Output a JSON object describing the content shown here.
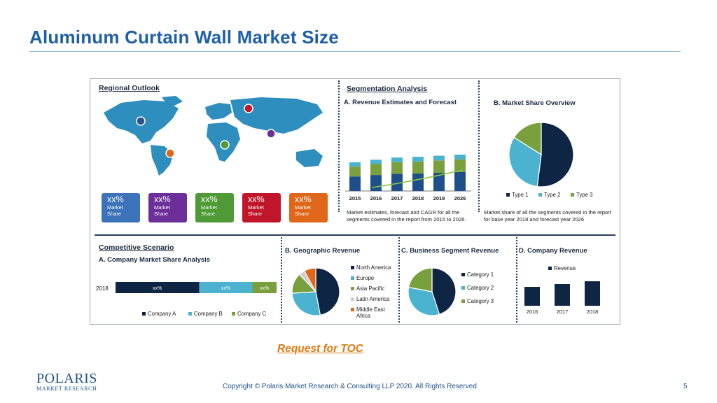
{
  "page": {
    "title": "Aluminum Curtain Wall Market  Size",
    "toc_link": "Request for TOC",
    "copyright": "Copyright © Polaris Market Research & Consulting LLP 2020. All Rights Reserved",
    "page_number": "5"
  },
  "logo": {
    "name": "POLARIS",
    "sub": "MARKET RESEARCH"
  },
  "regional": {
    "heading": "Regional Outlook",
    "boxes": [
      {
        "pct": "xx%",
        "l1": "Market",
        "l2": "Share",
        "color": "#3d73b8"
      },
      {
        "pct": "xx%",
        "l1": "Market",
        "l2": "Share",
        "color": "#6c2f9a"
      },
      {
        "pct": "xx%",
        "l1": "Market",
        "l2": "Share",
        "color": "#4f9a36"
      },
      {
        "pct": "xx%",
        "l1": "Market",
        "l2": "Share",
        "color": "#c0162b"
      },
      {
        "pct": "xx%",
        "l1": "Market",
        "l2": "Share",
        "color": "#e0661a"
      }
    ]
  },
  "segmentation": {
    "heading": "Segmentation Analysis",
    "revenue_title": "A. Revenue Estimates and Forecast",
    "revenue_caption": "Market estimates, forecast and CAGR for all the segments covered in the report from 2015 to 2026.",
    "share_title": "B. Market Share Overview",
    "share_caption": "Market share of all the segments covered in the report for base year 2018 and forecast year 2026",
    "share_legend": [
      "Type 1",
      "Type 2",
      "Type 3"
    ]
  },
  "competitive": {
    "heading": "Competitive Scenario",
    "title": "A. Company Market Share Analysis",
    "legend": [
      "Company  A",
      "Company B",
      "Company C"
    ]
  },
  "geo": {
    "title": "B. Geographic Revenue",
    "legend": [
      "North America",
      "Europe",
      "Asia Pacific",
      "Latin America",
      "Middle East Africa"
    ]
  },
  "business": {
    "title": "C. Business Segment Revenue",
    "legend": [
      "Category 1",
      "Category 2",
      "Category 3"
    ]
  },
  "company_rev": {
    "title": "D. Company Revenue",
    "legend": "Revenue"
  },
  "colors": {
    "navy": "#0f2544",
    "blue": "#1f4f8a",
    "teal": "#4bb3cf",
    "green": "#7aa03e",
    "orange": "#e0661a",
    "map": "#2e8fbf"
  },
  "chart_data": [
    {
      "type": "bar",
      "title": "A. Revenue Estimates and Forecast",
      "categories": [
        "2015",
        "2016",
        "2017",
        "2018",
        "2019",
        "2026"
      ],
      "series": [
        {
          "values": [
            40,
            44,
            47,
            48,
            50,
            52
          ]
        },
        {
          "values": [
            27,
            30,
            32,
            33,
            34,
            35
          ]
        },
        {
          "values": [
            12,
            12,
            13,
            13,
            13,
            13
          ]
        }
      ]
    },
    {
      "type": "pie",
      "title": "B. Market Share Overview",
      "labels": [
        "Type 1",
        "Type 2",
        "Type 3"
      ],
      "values": [
        52,
        32,
        16
      ]
    },
    {
      "type": "bar",
      "title": "A. Company Market Share Analysis",
      "categories": [
        "2018"
      ],
      "series": [
        {
          "name": "Company  A",
          "values": [
            52
          ],
          "label": "xx%"
        },
        {
          "name": "Company B",
          "values": [
            33
          ],
          "label": "xx%"
        },
        {
          "name": "Company C",
          "values": [
            15
          ],
          "label": "xx%"
        }
      ]
    },
    {
      "type": "pie",
      "title": "B. Geographic Revenue",
      "labels": [
        "North America",
        "Europe",
        "Asia Pacific",
        "Latin America",
        "Middle East Africa"
      ],
      "values": [
        47,
        27,
        14,
        4,
        8
      ]
    },
    {
      "type": "pie",
      "title": "C. Business Segment Revenue",
      "labels": [
        "Category 1",
        "Category 2",
        "Category 3"
      ],
      "values": [
        45,
        33,
        22
      ]
    },
    {
      "type": "bar",
      "title": "D. Company Revenue",
      "categories": [
        "2016",
        "2017",
        "2018"
      ],
      "series": [
        {
          "name": "Revenue",
          "values": [
            27,
            31,
            35
          ]
        }
      ]
    }
  ]
}
